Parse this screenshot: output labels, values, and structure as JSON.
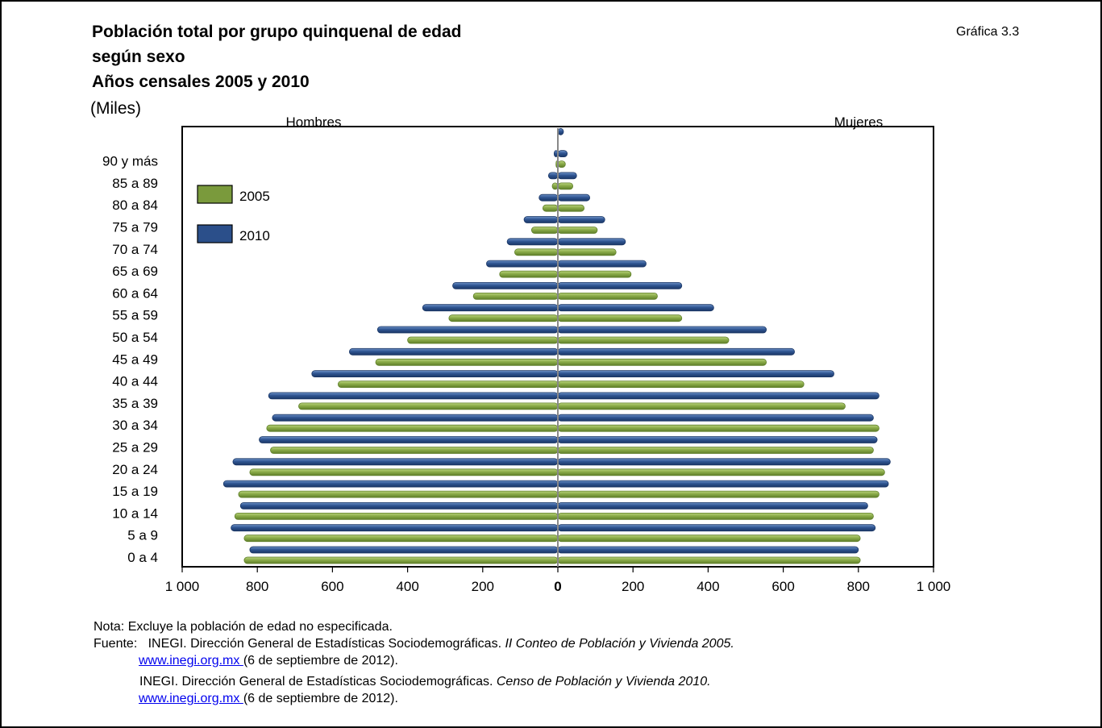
{
  "figure_number": "Gráfica 3.3",
  "title_lines": [
    "Población total por grupo quinquenal de edad",
    "según sexo",
    "Años censales 2005 y 2010"
  ],
  "units": "(Miles)",
  "chart_data": {
    "type": "bar",
    "orientation": "horizontal-population-pyramid",
    "left_label": "Hombres",
    "right_label": "Mujeres",
    "categories": [
      "0 a 4",
      "5 a 9",
      "10 a 14",
      "15 a 19",
      "20 a 24",
      "25 a 29",
      "30 a 34",
      "35 a 39",
      "40 a 44",
      "45 a 49",
      "50 a 54",
      "55 a 59",
      "60 a 64",
      "65 a 69",
      "70 a 74",
      "75 a 79",
      "80 a 84",
      "85 a 89",
      "90 y más",
      "",
      ""
    ],
    "xlim": [
      -1000,
      1000
    ],
    "x_ticks": [
      {
        "value": -1000,
        "label": "1 000"
      },
      {
        "value": -800,
        "label": "800"
      },
      {
        "value": -600,
        "label": "600"
      },
      {
        "value": -400,
        "label": "400"
      },
      {
        "value": -200,
        "label": "200"
      },
      {
        "value": 0,
        "label": "0"
      },
      {
        "value": 200,
        "label": "200"
      },
      {
        "value": 400,
        "label": "400"
      },
      {
        "value": 600,
        "label": "600"
      },
      {
        "value": 800,
        "label": "800"
      },
      {
        "value": 1000,
        "label": "1 000"
      }
    ],
    "legend_position": "top-left",
    "series": [
      {
        "name": "2005",
        "color": "#7A9A3C",
        "men": [
          835,
          835,
          860,
          850,
          820,
          765,
          775,
          690,
          585,
          485,
          400,
          290,
          225,
          155,
          115,
          70,
          40,
          15,
          5,
          0,
          0
        ],
        "women": [
          805,
          805,
          840,
          855,
          870,
          840,
          855,
          765,
          655,
          555,
          455,
          330,
          265,
          195,
          155,
          105,
          70,
          40,
          20,
          0,
          0
        ]
      },
      {
        "name": "2010",
        "color": "#2B4F8A",
        "men": [
          820,
          870,
          845,
          890,
          865,
          795,
          760,
          770,
          655,
          555,
          480,
          360,
          280,
          190,
          135,
          90,
          50,
          25,
          10,
          0,
          0
        ],
        "women": [
          800,
          845,
          825,
          880,
          885,
          850,
          840,
          855,
          735,
          630,
          555,
          415,
          330,
          235,
          180,
          125,
          85,
          50,
          25,
          15,
          0
        ]
      }
    ]
  },
  "notes": {
    "nota": "Nota: Excluye la población de edad no especificada.",
    "fuente_label": "Fuente:",
    "source1_prefix": "INEGI. Dirección General de Estadísticas Sociodemográficas. ",
    "source1_title": "II Conteo de Población y Vivienda 2005.",
    "source2_prefix": "INEGI. Dirección General de Estadísticas Sociodemográficas. ",
    "source2_title": "Censo de Población y Vivienda 2010.",
    "link": " www.inegi.org.mx ",
    "date": "(6 de septiembre de 2012)."
  }
}
